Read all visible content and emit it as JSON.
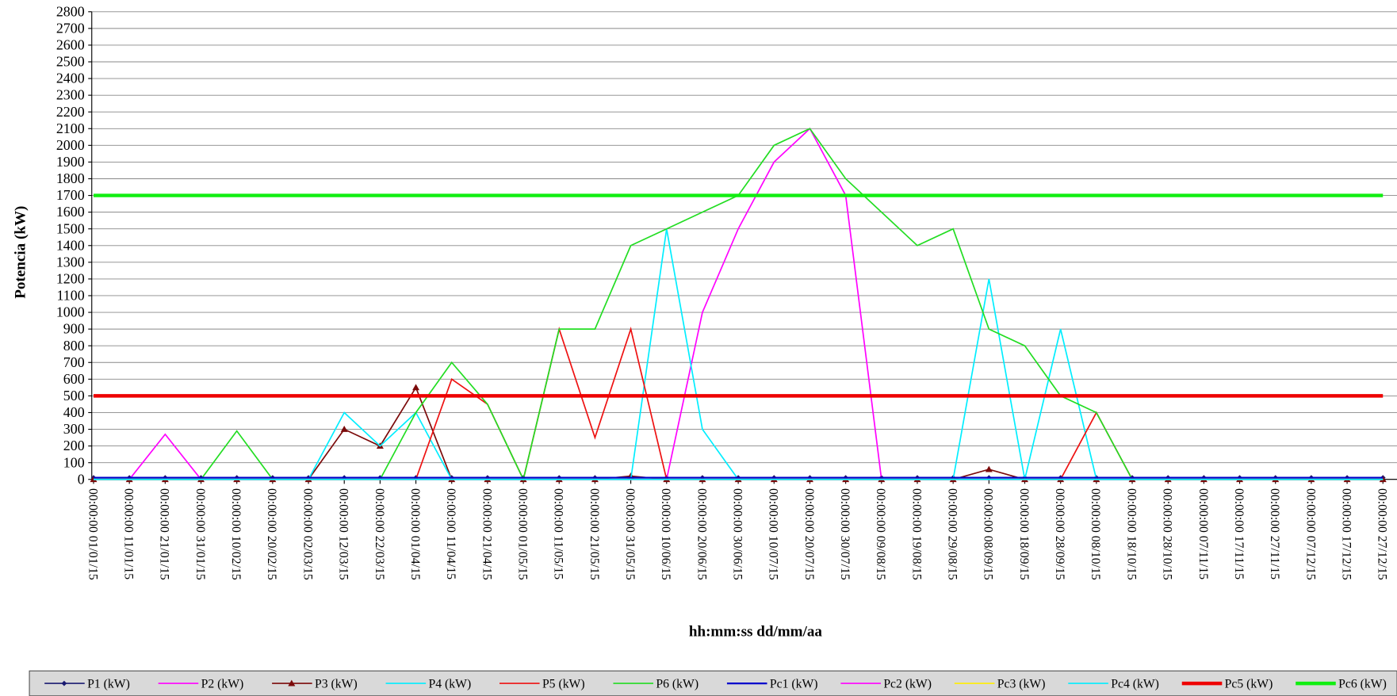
{
  "chart_data": {
    "type": "line",
    "y_axis_label": "Potencia (kW)",
    "x_axis_label": "hh:mm:ss  dd/mm/aa",
    "categories": [
      "00:00:00 01/01/15",
      "00:00:00 11/01/15",
      "00:00:00 21/01/15",
      "00:00:00 31/01/15",
      "00:00:00 10/02/15",
      "00:00:00 20/02/15",
      "00:00:00 02/03/15",
      "00:00:00 12/03/15",
      "00:00:00 22/03/15",
      "00:00:00 01/04/15",
      "00:00:00 11/04/15",
      "00:00:00 21/04/15",
      "00:00:00 01/05/15",
      "00:00:00 11/05/15",
      "00:00:00 21/05/15",
      "00:00:00 31/05/15",
      "00:00:00 10/06/15",
      "00:00:00 20/06/15",
      "00:00:00 30/06/15",
      "00:00:00 10/07/15",
      "00:00:00 20/07/15",
      "00:00:00 30/07/15",
      "00:00:00 09/08/15",
      "00:00:00 19/08/15",
      "00:00:00 29/08/15",
      "00:00:00 08/09/15",
      "00:00:00 18/09/15",
      "00:00:00 28/09/15",
      "00:00:00 08/10/15",
      "00:00:00 18/10/15",
      "00:00:00 28/10/15",
      "00:00:00 07/11/15",
      "00:00:00 17/11/15",
      "00:00:00 27/11/15",
      "00:00:00 07/12/15",
      "00:00:00 17/12/15",
      "00:00:00 27/12/15"
    ],
    "ylim": [
      0,
      2800
    ],
    "yticks": [
      0,
      100,
      200,
      300,
      400,
      500,
      600,
      700,
      800,
      900,
      1000,
      1100,
      1200,
      1300,
      1400,
      1500,
      1600,
      1700,
      1800,
      1900,
      2000,
      2100,
      2200,
      2300,
      2400,
      2500,
      2600,
      2700,
      2800
    ],
    "grid": true,
    "legend": "bottom",
    "series": [
      {
        "name": "P1 (kW)",
        "color": "#1a1a70",
        "line_width": 1.5,
        "marker": "diamond",
        "values": [
          10,
          10,
          10,
          10,
          10,
          10,
          10,
          10,
          10,
          10,
          10,
          10,
          10,
          10,
          10,
          10,
          10,
          10,
          10,
          10,
          10,
          10,
          10,
          10,
          10,
          10,
          10,
          10,
          10,
          10,
          10,
          10,
          10,
          10,
          10,
          10,
          10
        ]
      },
      {
        "name": "P2 (kW)",
        "color": "#ff00ff",
        "line_width": 1.5,
        "values": [
          0,
          0,
          270,
          0,
          0,
          0,
          0,
          0,
          0,
          0,
          0,
          0,
          0,
          0,
          0,
          0,
          0,
          1000,
          1500,
          1900,
          2100,
          1700,
          0,
          0,
          0,
          0,
          0,
          0,
          0,
          0,
          0,
          0,
          0,
          0,
          0,
          0,
          0
        ]
      },
      {
        "name": "P3 (kW)",
        "color": "#7b0a0a",
        "line_width": 1.5,
        "marker": "triangle",
        "values": [
          0,
          0,
          0,
          0,
          0,
          0,
          0,
          300,
          200,
          550,
          0,
          0,
          0,
          0,
          0,
          20,
          0,
          0,
          0,
          0,
          0,
          0,
          0,
          0,
          0,
          60,
          0,
          0,
          0,
          0,
          0,
          0,
          0,
          0,
          0,
          0,
          0
        ]
      },
      {
        "name": "P4 (kW)",
        "color": "#00eeff",
        "line_width": 1.5,
        "values": [
          0,
          0,
          0,
          0,
          0,
          0,
          0,
          400,
          200,
          400,
          0,
          0,
          0,
          0,
          0,
          0,
          1500,
          300,
          0,
          0,
          0,
          0,
          0,
          0,
          0,
          1200,
          0,
          900,
          0,
          0,
          0,
          0,
          0,
          0,
          0,
          0,
          0
        ]
      },
      {
        "name": "P5 (kW)",
        "color": "#ee1111",
        "line_width": 1.5,
        "values": [
          0,
          0,
          0,
          0,
          0,
          0,
          0,
          0,
          0,
          0,
          600,
          450,
          0,
          900,
          250,
          900,
          0,
          0,
          0,
          0,
          0,
          0,
          0,
          0,
          0,
          0,
          0,
          0,
          400,
          0,
          0,
          0,
          0,
          0,
          0,
          0,
          0
        ]
      },
      {
        "name": "P6 (kW)",
        "color": "#22dd22",
        "line_width": 1.5,
        "values": [
          0,
          0,
          0,
          0,
          290,
          0,
          0,
          0,
          0,
          400,
          700,
          450,
          0,
          900,
          900,
          1400,
          1500,
          1600,
          1700,
          2000,
          2100,
          1800,
          1600,
          1400,
          1500,
          900,
          800,
          500,
          400,
          0,
          0,
          0,
          0,
          0,
          0,
          0,
          0
        ]
      },
      {
        "name": "Pc1 (kW)",
        "color": "#0000cc",
        "line_width": 2,
        "values": [
          10,
          10,
          10,
          10,
          10,
          10,
          10,
          10,
          10,
          10,
          10,
          10,
          10,
          10,
          10,
          10,
          10,
          10,
          10,
          10,
          10,
          10,
          10,
          10,
          10,
          10,
          10,
          10,
          10,
          10,
          10,
          10,
          10,
          10,
          10,
          10,
          10
        ]
      },
      {
        "name": "Pc2 (kW)",
        "color": "#ff00ff",
        "line_width": 1.5,
        "values": [
          0,
          0,
          0,
          0,
          0,
          0,
          0,
          0,
          0,
          0,
          0,
          0,
          0,
          0,
          0,
          0,
          0,
          0,
          0,
          0,
          0,
          0,
          0,
          0,
          0,
          0,
          0,
          0,
          0,
          0,
          0,
          0,
          0,
          0,
          0,
          0,
          0
        ]
      },
      {
        "name": "Pc3 (kW)",
        "color": "#ffee00",
        "line_width": 1.5,
        "values": [
          0,
          0,
          0,
          0,
          0,
          0,
          0,
          0,
          0,
          0,
          0,
          0,
          0,
          0,
          0,
          0,
          0,
          0,
          0,
          0,
          0,
          0,
          0,
          0,
          0,
          0,
          0,
          0,
          0,
          0,
          0,
          0,
          0,
          0,
          0,
          0,
          0
        ]
      },
      {
        "name": "Pc4 (kW)",
        "color": "#00eeff",
        "line_width": 1.5,
        "values": [
          0,
          0,
          0,
          0,
          0,
          0,
          0,
          0,
          0,
          0,
          0,
          0,
          0,
          0,
          0,
          0,
          0,
          0,
          0,
          0,
          0,
          0,
          0,
          0,
          0,
          0,
          0,
          0,
          0,
          0,
          0,
          0,
          0,
          0,
          0,
          0,
          0
        ]
      },
      {
        "name": "Pc5 (kW)",
        "color": "#ee0000",
        "line_width": 4,
        "values": [
          500,
          500,
          500,
          500,
          500,
          500,
          500,
          500,
          500,
          500,
          500,
          500,
          500,
          500,
          500,
          500,
          500,
          500,
          500,
          500,
          500,
          500,
          500,
          500,
          500,
          500,
          500,
          500,
          500,
          500,
          500,
          500,
          500,
          500,
          500,
          500,
          500
        ]
      },
      {
        "name": "Pc6 (kW)",
        "color": "#11ee11",
        "line_width": 4,
        "values": [
          1700,
          1700,
          1700,
          1700,
          1700,
          1700,
          1700,
          1700,
          1700,
          1700,
          1700,
          1700,
          1700,
          1700,
          1700,
          1700,
          1700,
          1700,
          1700,
          1700,
          1700,
          1700,
          1700,
          1700,
          1700,
          1700,
          1700,
          1700,
          1700,
          1700,
          1700,
          1700,
          1700,
          1700,
          1700,
          1700,
          1700
        ]
      }
    ]
  }
}
